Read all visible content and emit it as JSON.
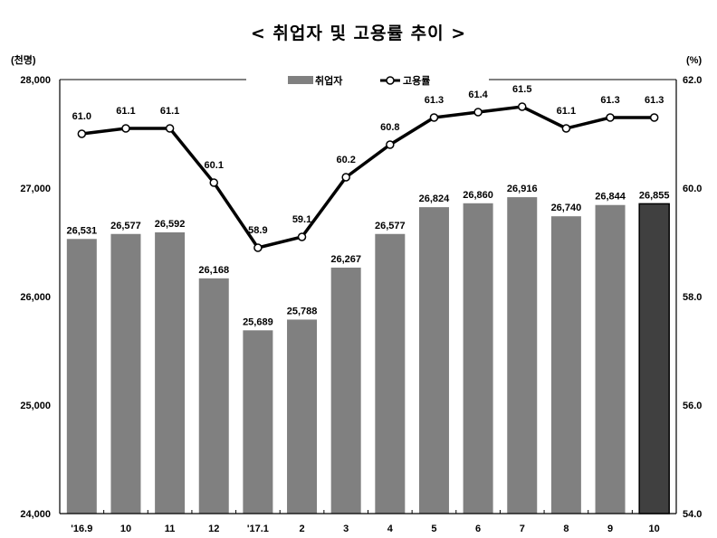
{
  "chart_data": {
    "type": "bar+line",
    "title": "< 취업자 및 고용률 추이 >",
    "y_left_unit": "(천명)",
    "y_right_unit": "(%)",
    "categories": [
      "'16.9",
      "10",
      "11",
      "12",
      "'17.1",
      "2",
      "3",
      "4",
      "5",
      "6",
      "7",
      "8",
      "9",
      "10"
    ],
    "series": [
      {
        "name": "취업자",
        "type": "bar",
        "axis": "left",
        "color": "#808080",
        "highlight_color": "#404040",
        "values": [
          26531,
          26577,
          26592,
          26168,
          25689,
          25788,
          26267,
          26577,
          26824,
          26860,
          26916,
          26740,
          26844,
          26855
        ],
        "labels": [
          "26,531",
          "26,577",
          "26,592",
          "26,168",
          "25,689",
          "25,788",
          "26,267",
          "26,577",
          "26,824",
          "26,860",
          "26,916",
          "26,740",
          "26,844",
          "26,855"
        ]
      },
      {
        "name": "고용률",
        "type": "line",
        "axis": "right",
        "color": "#000000",
        "values": [
          61.0,
          61.1,
          61.1,
          60.1,
          58.9,
          59.1,
          60.2,
          60.8,
          61.3,
          61.4,
          61.5,
          61.1,
          61.3,
          61.3
        ],
        "labels": [
          "61.0",
          "61.1",
          "61.1",
          "60.1",
          "58.9",
          "59.1",
          "60.2",
          "60.8",
          "61.3",
          "61.4",
          "61.5",
          "61.1",
          "61.3",
          "61.3"
        ]
      }
    ],
    "y_left": {
      "lim": [
        24000,
        28000
      ],
      "ticks": [
        24000,
        25000,
        26000,
        27000,
        28000
      ],
      "tick_labels": [
        "24,000",
        "25,000",
        "26,000",
        "27,000",
        "28,000"
      ]
    },
    "y_right": {
      "lim": [
        54.0,
        62.0
      ],
      "ticks": [
        54,
        56,
        58,
        60,
        62
      ],
      "tick_labels": [
        "54.0",
        "56.0",
        "58.0",
        "60.0",
        "62.0"
      ]
    },
    "legend": "top-center",
    "grid": false
  }
}
